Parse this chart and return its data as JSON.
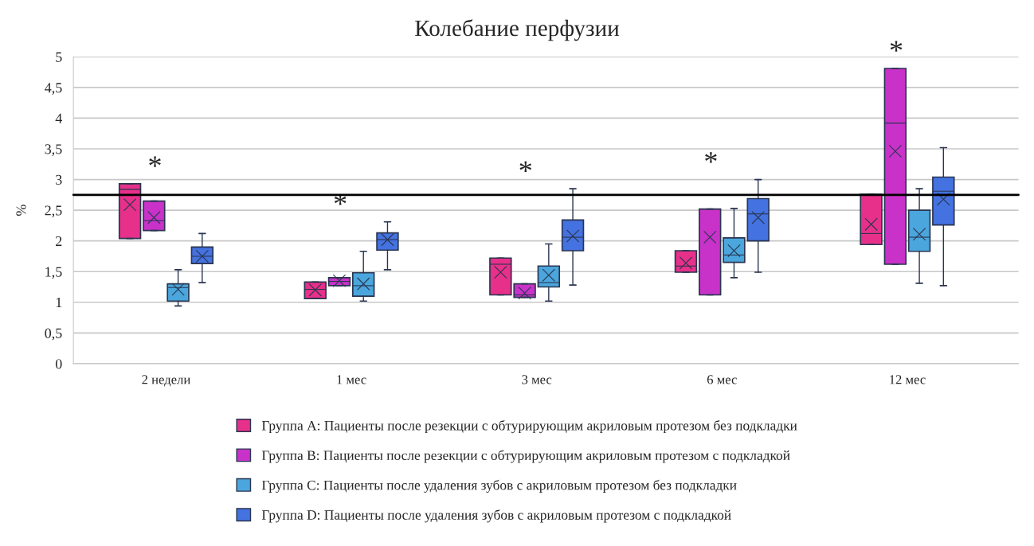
{
  "chart_data": {
    "type": "box",
    "title": "Колебание перфузии",
    "ylabel": "%",
    "categories": [
      "2 недели",
      "1 мес",
      "3 мес",
      "6 мес",
      "12 мес"
    ],
    "series": [
      {
        "name": "Группа А: Пациенты после резекции с обтурирующим акриловым протезом без подкладки",
        "color": "#e6308a",
        "boxes": [
          {
            "low": 2.04,
            "q1": 2.04,
            "median": 2.84,
            "q3": 2.93,
            "high": 2.93,
            "mean": 2.59
          },
          {
            "low": 1.06,
            "q1": 1.06,
            "median": 1.21,
            "q3": 1.33,
            "high": 1.33,
            "mean": 1.2
          },
          {
            "low": 1.12,
            "q1": 1.12,
            "median": 1.62,
            "q3": 1.72,
            "high": 1.72,
            "mean": 1.49
          },
          {
            "low": 1.49,
            "q1": 1.49,
            "median": 1.59,
            "q3": 1.84,
            "high": 1.84,
            "mean": 1.64
          },
          {
            "low": 1.94,
            "q1": 1.94,
            "median": 2.12,
            "q3": 2.76,
            "high": 2.76,
            "mean": 2.27
          }
        ]
      },
      {
        "name": "Группа В: Пациенты после резекции с обтурирующим акриловым протезом с подкладкой",
        "color": "#c832c8",
        "boxes": [
          {
            "low": 2.17,
            "q1": 2.17,
            "median": 2.33,
            "q3": 2.65,
            "high": 2.65,
            "mean": 2.38
          },
          {
            "low": 1.27,
            "q1": 1.27,
            "median": 1.34,
            "q3": 1.4,
            "high": 1.4,
            "mean": 1.35
          },
          {
            "low": 1.08,
            "q1": 1.08,
            "median": 1.12,
            "q3": 1.3,
            "high": 1.3,
            "mean": 1.15
          },
          {
            "low": 1.12,
            "q1": 1.12,
            "median": 2.52,
            "q3": 2.52,
            "high": 2.52,
            "mean": 2.06
          },
          {
            "low": 1.62,
            "q1": 1.62,
            "median": 3.92,
            "q3": 4.81,
            "high": 4.81,
            "mean": 3.46
          }
        ]
      },
      {
        "name": "Группа С: Пациенты после удаления зубов с акриловым протезом без подкладки",
        "color": "#4aa6dc",
        "boxes": [
          {
            "low": 0.94,
            "q1": 1.02,
            "median": 1.24,
            "q3": 1.3,
            "high": 1.53,
            "mean": 1.21
          },
          {
            "low": 1.02,
            "q1": 1.1,
            "median": 1.27,
            "q3": 1.48,
            "high": 1.83,
            "mean": 1.3
          },
          {
            "low": 1.02,
            "q1": 1.25,
            "median": 1.32,
            "q3": 1.59,
            "high": 1.95,
            "mean": 1.44
          },
          {
            "low": 1.4,
            "q1": 1.65,
            "median": 1.77,
            "q3": 2.05,
            "high": 2.53,
            "mean": 1.84
          },
          {
            "low": 1.31,
            "q1": 1.83,
            "median": 2.06,
            "q3": 2.5,
            "high": 2.85,
            "mean": 2.11
          }
        ]
      },
      {
        "name": "Группа D: Пациенты после удаления зубов с акриловым протезом с подкладкой",
        "color": "#4472e0",
        "boxes": [
          {
            "low": 1.32,
            "q1": 1.63,
            "median": 1.75,
            "q3": 1.9,
            "high": 2.12,
            "mean": 1.75
          },
          {
            "low": 1.53,
            "q1": 1.85,
            "median": 2.02,
            "q3": 2.13,
            "high": 2.31,
            "mean": 2.02
          },
          {
            "low": 1.28,
            "q1": 1.84,
            "median": 2.06,
            "q3": 2.34,
            "high": 2.85,
            "mean": 2.08
          },
          {
            "low": 1.49,
            "q1": 2.0,
            "median": 2.44,
            "q3": 2.69,
            "high": 3.0,
            "mean": 2.38
          },
          {
            "low": 1.27,
            "q1": 2.26,
            "median": 2.81,
            "q3": 3.04,
            "high": 3.52,
            "mean": 2.68
          }
        ]
      }
    ],
    "ylim": [
      0,
      5
    ],
    "yticks": [
      0,
      {
        "value": 0.5,
        "label": "0,5"
      },
      1,
      {
        "value": 1.5,
        "label": "1,5"
      },
      2,
      {
        "value": 2.5,
        "label": "2,5"
      },
      3,
      {
        "value": 3.5,
        "label": "3,5"
      },
      4,
      {
        "value": 4.5,
        "label": "4,5"
      },
      5
    ],
    "ref_lines": [
      {
        "axis": "y",
        "value": 2.75,
        "color": "#000000"
      }
    ],
    "annotations": [
      "*",
      "*",
      "*",
      "*",
      "*"
    ],
    "grid": "y",
    "legend": "bottom"
  }
}
